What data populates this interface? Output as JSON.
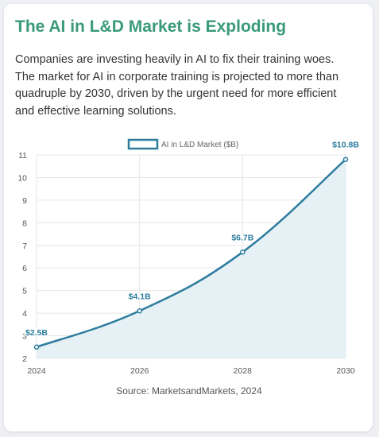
{
  "card": {
    "title": "The AI in L&D Market is Exploding",
    "description": "Companies are investing heavily in AI to fix their training woes. The market for AI in corporate training is projected to more than quadruple by 2030, driven by the urgent need for more efficient and effective learning solutions.",
    "source": "Source: MarketsandMarkets, 2024"
  },
  "colors": {
    "title": "#3a9a7a",
    "line": "#2e7d9e",
    "fill": "#e6f1f5",
    "label": "#2e7d9e"
  },
  "chart_data": {
    "type": "area",
    "x": [
      2024,
      2026,
      2028,
      2030
    ],
    "x_tick_labels": [
      "2024",
      "2026",
      "2028",
      "2030"
    ],
    "series": [
      {
        "name": "AI in L&D Market ($B)",
        "values": [
          2.5,
          4.1,
          6.7,
          10.8
        ],
        "data_labels": [
          "$2.5B",
          "$4.1B",
          "$6.7B",
          "$10.8B"
        ]
      }
    ],
    "ylim": [
      2,
      11
    ],
    "y_ticks": [
      "2",
      "3",
      "4",
      "5",
      "6",
      "7",
      "8",
      "9",
      "10",
      "11"
    ],
    "xlim": [
      2024,
      2030
    ],
    "legend_position": "top",
    "grid": true
  }
}
